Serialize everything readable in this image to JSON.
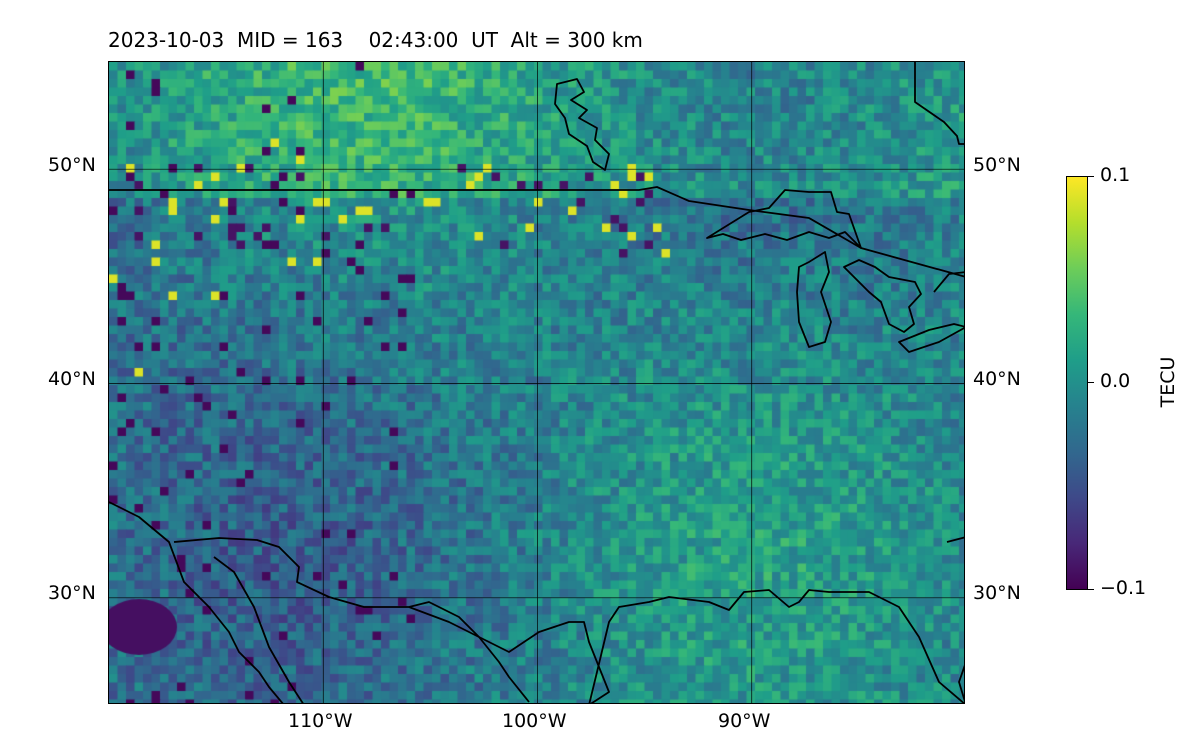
{
  "title": "2023-10-03  MID = 163    02:43:00  UT  Alt = 300 km",
  "map": {
    "extent": {
      "lon_min": -120,
      "lon_max": -80,
      "lat_min": 25,
      "lat_max": 55
    },
    "grid_lats": [
      30,
      40,
      50
    ],
    "grid_lons": [
      -110,
      -100,
      -90
    ],
    "lat_labels": [
      "30°N",
      "40°N",
      "50°N"
    ],
    "lon_labels": [
      "110°W",
      "100°W",
      "90°W"
    ],
    "variable": "TEC anomaly",
    "palette": "viridis"
  },
  "colorbar": {
    "title": "TECU",
    "min": -0.1,
    "max": 0.1,
    "ticks": [
      {
        "value": 0.1,
        "label": "0.1"
      },
      {
        "value": 0.0,
        "label": "0.0"
      },
      {
        "value": -0.1,
        "label": "−0.1"
      }
    ]
  }
}
